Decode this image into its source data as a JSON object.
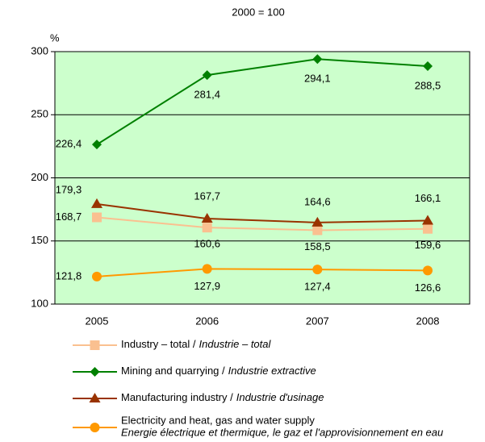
{
  "chart_data": {
    "type": "line",
    "subtitle": "2000 = 100",
    "y_label": "%",
    "categories": [
      "2005",
      "2006",
      "2007",
      "2008"
    ],
    "ylim": [
      100,
      300
    ],
    "yticks": [
      100,
      150,
      200,
      250,
      300
    ],
    "grid": true,
    "plot_background": "#ccffcc",
    "series": [
      {
        "name": "Industry – total /",
        "name_local": "Industrie – total",
        "color": "#fac090",
        "marker": "square",
        "values": [
          168.7,
          160.6,
          158.5,
          159.6
        ],
        "value_labels": [
          "168,7",
          "160,6",
          "158,5",
          "159,6"
        ]
      },
      {
        "name": "Mining and quarrying /",
        "name_local": "Industrie extractive",
        "color": "#008000",
        "marker": "diamond",
        "values": [
          226.4,
          281.4,
          294.1,
          288.5
        ],
        "value_labels": [
          "226,4",
          "281,4",
          "294,1",
          "288,5"
        ]
      },
      {
        "name": "Manufacturing industry /",
        "name_local": "Industrie d'usinage",
        "color": "#993300",
        "marker": "triangle",
        "values": [
          179.3,
          167.7,
          164.6,
          166.1
        ],
        "value_labels": [
          "179,3",
          "167,7",
          "164,6",
          "166,1"
        ]
      },
      {
        "name": "Electricity and heat, gas and water supply",
        "name_local": "Energie électrique et thermique, le gaz et l'approvisionnement en eau",
        "color": "#ff9900",
        "marker": "circle",
        "values": [
          121.8,
          127.9,
          127.4,
          126.6
        ],
        "value_labels": [
          "121,8",
          "127,9",
          "127,4",
          "126,6"
        ]
      }
    ]
  }
}
